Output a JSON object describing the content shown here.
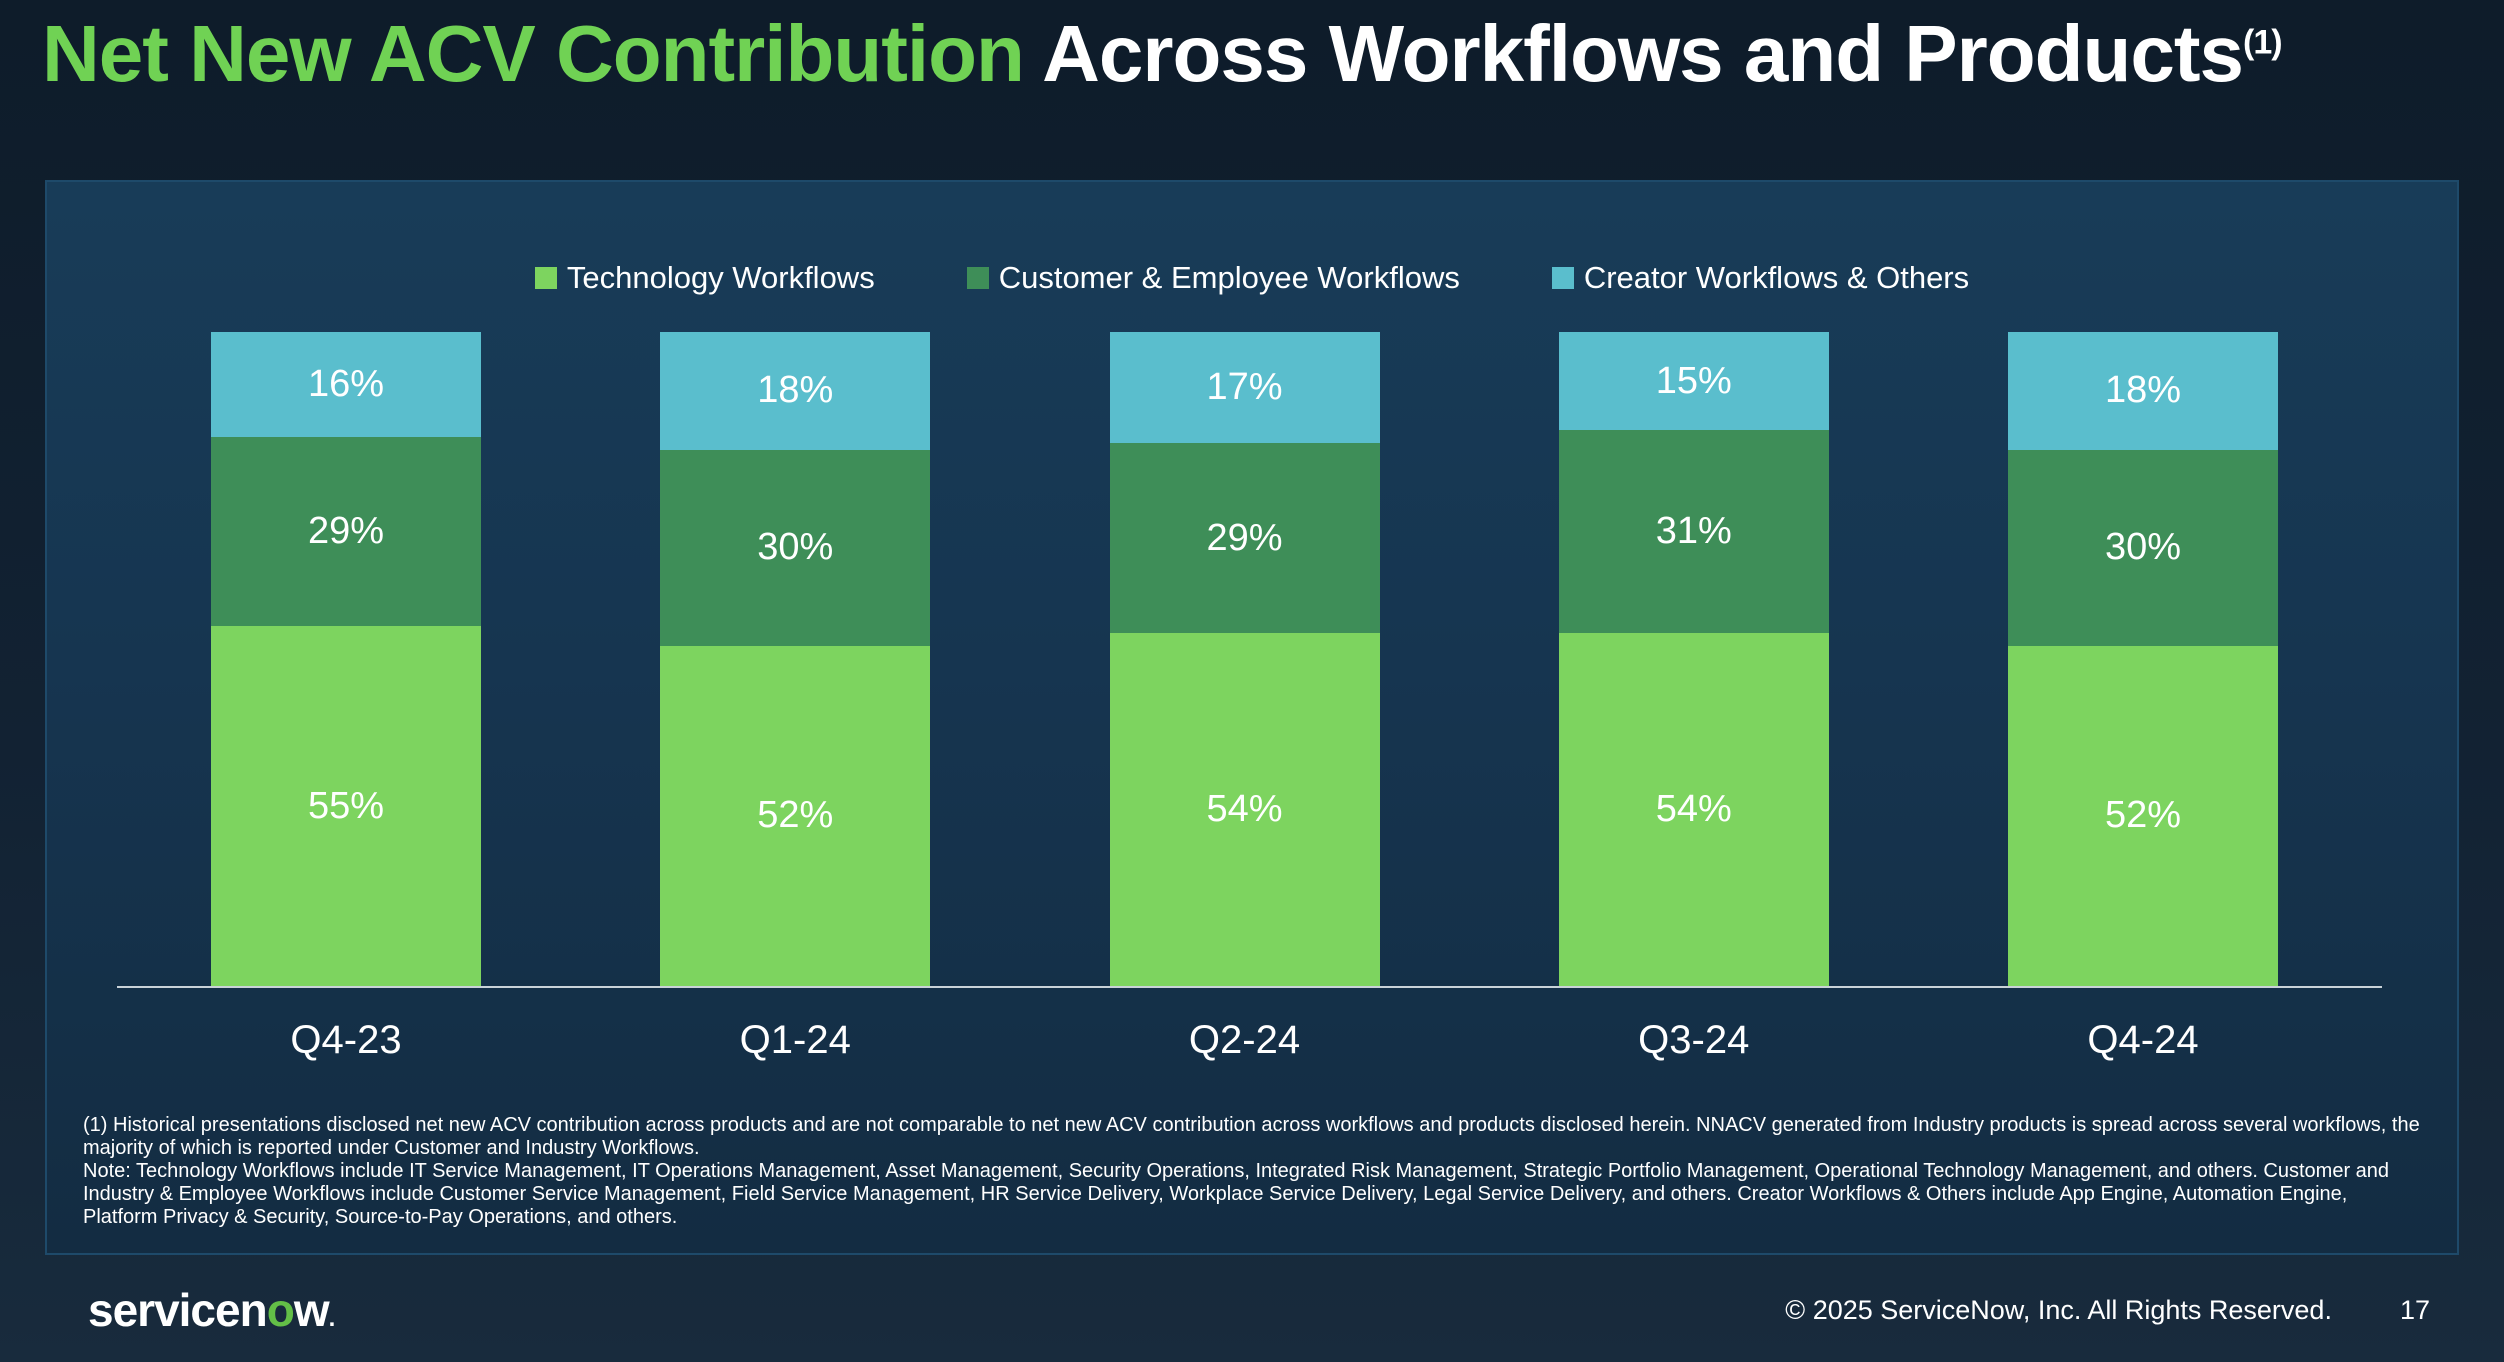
{
  "title": {
    "highlight": "Net New ACV Contribution",
    "rest": " Across Workflows and Products",
    "superscript": "(1)"
  },
  "chart_data": {
    "type": "stacked-bar",
    "categories": [
      "Q4-23",
      "Q1-24",
      "Q2-24",
      "Q3-24",
      "Q4-24"
    ],
    "series": [
      {
        "name": "Technology Workflows",
        "color": "#7dd45f",
        "values": [
          55,
          52,
          54,
          54,
          52
        ]
      },
      {
        "name": "Customer & Employee Workflows",
        "color": "#3e8e58",
        "values": [
          29,
          30,
          29,
          31,
          30
        ]
      },
      {
        "name": "Creator Workflows & Others",
        "color": "#5abecd",
        "values": [
          16,
          18,
          17,
          15,
          18
        ]
      }
    ],
    "value_suffix": "%",
    "ylim": [
      0,
      100
    ],
    "legend_position": "top-center",
    "grid": false,
    "value_labels": "inside-center"
  },
  "footnotes": {
    "footnote1": "(1) Historical presentations disclosed net new ACV contribution across products and are not comparable to net new ACV contribution across workflows and products disclosed herein. NNACV generated from Industry products is spread across several workflows, the majority of which is reported under Customer and Industry Workflows.",
    "note": "Note: Technology Workflows include IT Service Management, IT Operations Management, Asset Management, Security Operations, Integrated Risk Management, Strategic Portfolio Management, Operational Technology Management, and others. Customer and Industry & Employee Workflows include Customer Service Management, Field Service Management, HR Service Delivery, Workplace Service Delivery, Legal Service Delivery, and others. Creator Workflows & Others include App Engine, Automation Engine, Platform Privacy & Security, Source-to-Pay Operations, and others."
  },
  "footer": {
    "logo": {
      "before_o": "servicen",
      "o": "o",
      "after_o": "w",
      "mark": "."
    },
    "copyright": "© 2025 ServiceNow, Inc. All Rights Reserved.",
    "page_number": "17"
  },
  "colors": {
    "title_highlight": "#70d254",
    "page_background_top": "#0e1c2a",
    "page_background_bottom": "#182b3d",
    "panel_background_top": "#183c58",
    "panel_background_bottom": "#132c42",
    "panel_border": "#1e4a6a",
    "baseline": "#c9d2d8",
    "logo_o_green": "#63bf47",
    "text": "#ffffff"
  }
}
